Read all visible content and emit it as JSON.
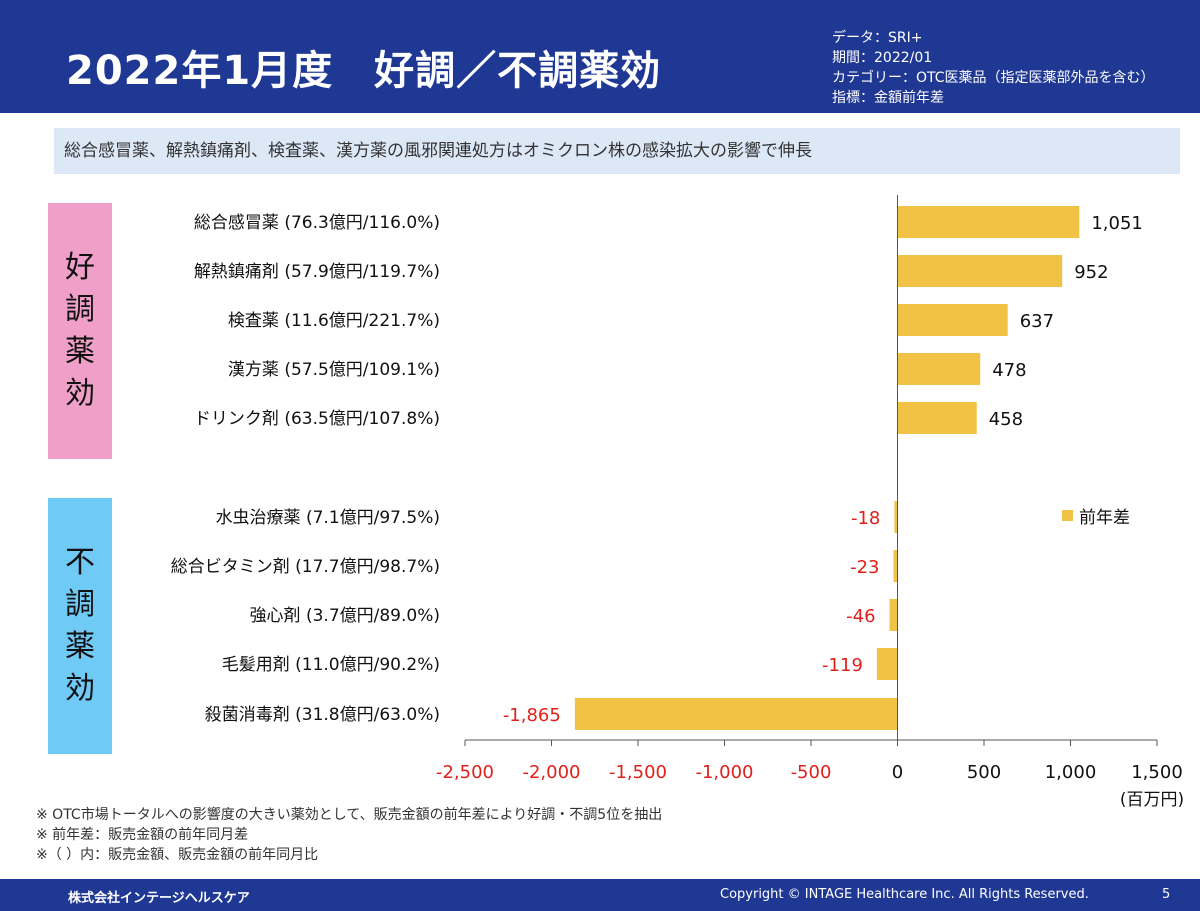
{
  "header": {
    "title": "2022年1月度　好調／不調薬効",
    "meta": [
      "データ：SRI+",
      "期間：2022/01",
      "カテゴリー：OTC医薬品（指定医薬部外品を含む）",
      "指標：金額前年差"
    ]
  },
  "subtitle": "総合感冒薬、解熱鎮痛剤、検査薬、漢方薬の風邪関連処方はオミクロン株の感染拡大の影響で伸長",
  "groups": {
    "good": [
      "好",
      "調",
      "薬",
      "効"
    ],
    "bad": [
      "不",
      "調",
      "薬",
      "効"
    ]
  },
  "legend": {
    "label": "前年差"
  },
  "chart_data": {
    "type": "bar",
    "orientation": "horizontal",
    "categories": [
      "総合感冒薬 (76.3億円/116.0%)",
      "解熱鎮痛剤 (57.9億円/119.7%)",
      "検査薬 (11.6億円/221.7%)",
      "漢方薬 (57.5億円/109.1%)",
      "ドリンク剤 (63.5億円/107.8%)",
      "水虫治療薬 (7.1億円/97.5%)",
      "総合ビタミン剤 (17.7億円/98.7%)",
      "強心剤 (3.7億円/89.0%)",
      "毛髪用剤 (11.0億円/90.2%)",
      "殺菌消毒剤 (31.8億円/63.0%)"
    ],
    "series": [
      {
        "name": "前年差",
        "values": [
          1051,
          952,
          637,
          478,
          458,
          -18,
          -23,
          -46,
          -119,
          -1865
        ],
        "labels": [
          "1,051",
          "952",
          "637",
          "478",
          "458",
          "-18",
          "-23",
          "-46",
          "-119",
          "-1,865"
        ]
      }
    ],
    "xlim": [
      -2500,
      1500
    ],
    "xticks": [
      -2500,
      -2000,
      -1500,
      -1000,
      -500,
      0,
      500,
      1000,
      1500
    ],
    "xtick_labels": [
      "-2,500",
      "-2,000",
      "-1,500",
      "-1,000",
      "-500",
      "0",
      "500",
      "1,000",
      "1,500"
    ],
    "unit": "(百万円)",
    "bar_color": "#f2c244",
    "negative_label_color": "#e0201b",
    "positive_label_color": "#111111",
    "grid": false,
    "legend_position": "right"
  },
  "notes": [
    "※ OTC市場トータルへの影響度の大きい薬効として、販売金額の前年差により好調・不調5位を抽出",
    "※ 前年差：販売金額の前年同月差",
    "※（ ）内：販売金額、販売金額の前年同月比"
  ],
  "footer": {
    "company": "株式会社インテージヘルスケア",
    "copyright": "Copyright © INTAGE Healthcare Inc. All Rights Reserved.",
    "page": "5"
  }
}
